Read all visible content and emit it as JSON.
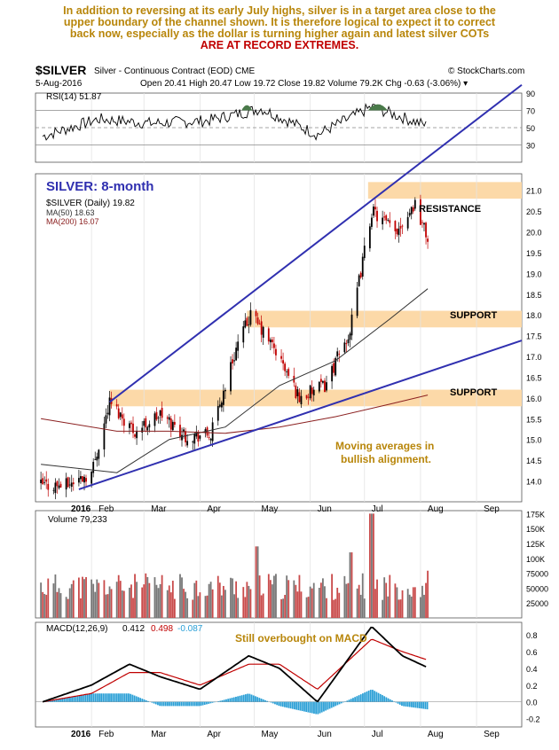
{
  "commentary": {
    "lines": [
      "In addition to reversing at its early July highs, silver is in a target area close to the",
      "upper boundary of the channel shown. It is therefore logical to expect it to correct",
      "back now, especially as the dollar is turning higher again and latest silver COTs",
      "ARE AT RECORD EXTREMES."
    ],
    "colors": [
      "#b8860b",
      "#b8860b",
      "#b8860b",
      "#c00000"
    ]
  },
  "header": {
    "symbol": "$SILVER",
    "description": "Silver - Continuous Contract (EOD)  CME",
    "source": "© StockCharts.com",
    "date": "5-Aug-2016",
    "quote": "Open 20.41  High 20.47  Low 19.72  Close 19.82  Volume 79.2K  Chg -0.63 (-3.06%) ▾"
  },
  "rsi_legend": "RSI(14) 51.87",
  "price_legend": {
    "main": "$SILVER (Daily) 19.82",
    "ma50": "MA(50) 18.63",
    "ma200": "MA(200) 16.07"
  },
  "annotations": {
    "chart_title": "SILVER: 8-month",
    "resistance": "RESISTANCE",
    "support_upper": "SUPPORT",
    "support_lower": "SUPPORT",
    "ma_note_1": "Moving averages in",
    "ma_note_2": "bullish alignment.",
    "macd_note": "Still overbought on MACD"
  },
  "volume_legend": "Volume 79,233",
  "macd_legend": {
    "label": "MACD(12,26,9)",
    "v1": "0.412",
    "v2": "0.498",
    "v3": "-0.087"
  },
  "months": [
    "2016",
    "Feb",
    "Mar",
    "Apr",
    "May",
    "Jun",
    "Jul",
    "Aug",
    "Sep"
  ],
  "colors": {
    "trendline": "#3030b0",
    "band": "#fcd9a8",
    "up_candle": "#000000",
    "down_candle": "#c00000",
    "ma50": "#333333",
    "ma200": "#8b2020",
    "macd_line": "#000000",
    "signal_line": "#c00000",
    "histogram": "#2a9fd6",
    "rsi_fill": "#4a7a4a",
    "volume_up": "#777777",
    "volume_down": "#c94a4a",
    "annotation_orange": "#b8860b",
    "title_blue": "#3030b0"
  },
  "chart_data": [
    {
      "type": "line",
      "name": "RSI(14)",
      "yticks": [
        30,
        50,
        70,
        90
      ],
      "ylim": [
        10,
        90
      ],
      "reference_lines": [
        30,
        50,
        70
      ],
      "last": 51.87,
      "x": [
        "2016-01",
        "2016-02",
        "2016-03",
        "2016-04",
        "2016-05",
        "2016-06",
        "2016-07",
        "2016-08"
      ],
      "values": [
        40,
        60,
        55,
        58,
        72,
        42,
        74,
        52
      ]
    },
    {
      "type": "candlestick",
      "name": "$SILVER (Daily)",
      "ylim": [
        13.5,
        21.4
      ],
      "yticks": [
        "14.0",
        "14.5",
        "15.0",
        "15.5",
        "16.0",
        "16.5",
        "17.0",
        "17.5",
        "18.0",
        "18.5",
        "19.0",
        "19.5",
        "20.0",
        "20.5",
        "21.0"
      ],
      "x": [
        "2016-01-04",
        "2016-01-18",
        "2016-02-01",
        "2016-02-11",
        "2016-02-25",
        "2016-03-10",
        "2016-03-24",
        "2016-04-07",
        "2016-04-21",
        "2016-04-29",
        "2016-05-12",
        "2016-05-26",
        "2016-06-09",
        "2016-06-23",
        "2016-07-05",
        "2016-07-18",
        "2016-07-29",
        "2016-08-05"
      ],
      "close": [
        13.9,
        13.9,
        14.2,
        15.9,
        15.2,
        15.6,
        15.1,
        15.1,
        17.2,
        18.0,
        17.2,
        16.0,
        16.3,
        17.6,
        20.5,
        20.0,
        20.7,
        19.82
      ],
      "ma50_last": 18.63,
      "ma200_last": 16.07,
      "resistance_zone": [
        20.8,
        21.2
      ],
      "support_zones": [
        [
          17.7,
          18.1
        ],
        [
          15.8,
          16.2
        ]
      ],
      "channel_upper": {
        "from": [
          "2016-02-11",
          15.9
        ],
        "to": [
          "2016-08-05",
          21.6
        ]
      },
      "channel_lower": {
        "from": [
          "2016-01-25",
          13.8
        ],
        "to": [
          "2016-08-05",
          17.3
        ]
      }
    },
    {
      "type": "bar",
      "name": "Volume",
      "yticks": [
        "25000",
        "50000",
        "75000",
        "100K",
        "125K",
        "150K",
        "175K"
      ],
      "ylim": [
        0,
        180000
      ],
      "last": 79233,
      "peaks": [
        {
          "date": "2016-05-02",
          "value": 120000
        },
        {
          "date": "2016-06-24",
          "value": 110000
        },
        {
          "date": "2016-07-05",
          "value": 175000
        }
      ]
    },
    {
      "type": "line",
      "name": "MACD(12,26,9)",
      "yticks": [
        "-0.2",
        "0.0",
        "0.2",
        "0.4",
        "0.6",
        "0.8"
      ],
      "ylim": [
        -0.3,
        0.95
      ],
      "macd": 0.412,
      "signal": 0.498,
      "histogram": -0.087,
      "x": [
        "2016-01-05",
        "2016-02-01",
        "2016-02-22",
        "2016-03-10",
        "2016-04-01",
        "2016-04-28",
        "2016-05-15",
        "2016-06-05",
        "2016-07-05",
        "2016-07-22",
        "2016-08-05"
      ],
      "macd_values": [
        0.0,
        0.2,
        0.45,
        0.3,
        0.15,
        0.55,
        0.4,
        0.0,
        0.9,
        0.55,
        0.41
      ],
      "signal_values": [
        0.0,
        0.1,
        0.35,
        0.35,
        0.2,
        0.45,
        0.45,
        0.15,
        0.75,
        0.6,
        0.5
      ]
    }
  ]
}
